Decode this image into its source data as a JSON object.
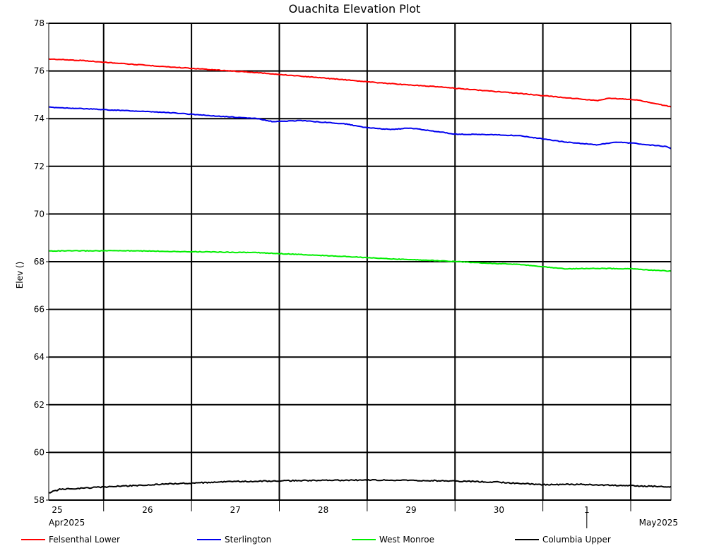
{
  "chart_data": {
    "type": "line",
    "title": "Ouachita Elevation Plot",
    "ylabel": "Elev ()",
    "xlabel": "",
    "ylim": [
      58,
      78
    ],
    "y_ticks": [
      58,
      60,
      62,
      64,
      66,
      68,
      70,
      72,
      74,
      76,
      78
    ],
    "xlim": [
      "2025-04-24T21:00",
      "2025-05-01T23:00"
    ],
    "x_tick_labels": [
      {
        "date": "2025-04-25",
        "label": "25"
      },
      {
        "date": "2025-04-26",
        "label": "26"
      },
      {
        "date": "2025-04-27",
        "label": "27"
      },
      {
        "date": "2025-04-28",
        "label": "28"
      },
      {
        "date": "2025-04-29",
        "label": "29"
      },
      {
        "date": "2025-04-30",
        "label": "30"
      },
      {
        "date": "2025-05-01",
        "label": "1"
      }
    ],
    "x_major_ticks": [
      "2025-04-25T12:00",
      "2025-04-26T12:00",
      "2025-04-27T12:00",
      "2025-04-28T12:00",
      "2025-04-29T12:00",
      "2025-04-30T12:00",
      "2025-05-01T12:00"
    ],
    "month_labels": [
      {
        "date": "2025-04-25",
        "label": "Apr2025"
      },
      {
        "date": "2025-05-01",
        "label": "May2025"
      }
    ],
    "month_boundary": "2025-05-01T00:00",
    "grid": true,
    "legend_position": "bottom",
    "series": [
      {
        "name": "Felsenthal Lower",
        "color": "#ff0000",
        "points": [
          [
            "2025-04-24T21:00",
            76.5
          ],
          [
            "2025-04-25T06:00",
            76.44
          ],
          [
            "2025-04-25T18:00",
            76.3
          ],
          [
            "2025-04-26T06:00",
            76.17
          ],
          [
            "2025-04-26T18:00",
            76.05
          ],
          [
            "2025-04-27T06:00",
            75.93
          ],
          [
            "2025-04-27T18:00",
            75.78
          ],
          [
            "2025-04-28T06:00",
            75.63
          ],
          [
            "2025-04-28T18:00",
            75.47
          ],
          [
            "2025-04-29T06:00",
            75.35
          ],
          [
            "2025-04-29T18:00",
            75.2
          ],
          [
            "2025-04-30T06:00",
            75.05
          ],
          [
            "2025-04-30T18:00",
            74.88
          ],
          [
            "2025-05-01T03:00",
            74.76
          ],
          [
            "2025-05-01T06:00",
            74.86
          ],
          [
            "2025-05-01T14:00",
            74.78
          ],
          [
            "2025-05-01T23:00",
            74.5
          ]
        ]
      },
      {
        "name": "Sterlington",
        "color": "#0000ee",
        "points": [
          [
            "2025-04-24T21:00",
            74.48
          ],
          [
            "2025-04-25T12:00",
            74.38
          ],
          [
            "2025-04-26T06:00",
            74.25
          ],
          [
            "2025-04-26T18:00",
            74.12
          ],
          [
            "2025-04-27T06:00",
            74.0
          ],
          [
            "2025-04-27T10:00",
            73.88
          ],
          [
            "2025-04-27T18:00",
            73.92
          ],
          [
            "2025-04-28T06:00",
            73.78
          ],
          [
            "2025-04-28T12:00",
            73.62
          ],
          [
            "2025-04-28T18:00",
            73.55
          ],
          [
            "2025-04-29T00:00",
            73.6
          ],
          [
            "2025-04-29T06:00",
            73.48
          ],
          [
            "2025-04-29T12:00",
            73.35
          ],
          [
            "2025-04-30T00:00",
            73.32
          ],
          [
            "2025-04-30T06:00",
            73.28
          ],
          [
            "2025-04-30T18:00",
            73.02
          ],
          [
            "2025-05-01T03:00",
            72.9
          ],
          [
            "2025-05-01T08:00",
            73.02
          ],
          [
            "2025-05-01T14:00",
            72.95
          ],
          [
            "2025-05-01T22:00",
            72.82
          ],
          [
            "2025-05-01T23:00",
            72.74
          ]
        ]
      },
      {
        "name": "West Monroe",
        "color": "#00ee00",
        "points": [
          [
            "2025-04-24T21:00",
            68.45
          ],
          [
            "2025-04-25T18:00",
            68.46
          ],
          [
            "2025-04-26T12:00",
            68.42
          ],
          [
            "2025-04-27T06:00",
            68.38
          ],
          [
            "2025-04-27T18:00",
            68.3
          ],
          [
            "2025-04-28T06:00",
            68.22
          ],
          [
            "2025-04-28T18:00",
            68.12
          ],
          [
            "2025-04-29T06:00",
            68.05
          ],
          [
            "2025-04-29T18:00",
            67.96
          ],
          [
            "2025-04-30T06:00",
            67.88
          ],
          [
            "2025-04-30T18:00",
            67.7
          ],
          [
            "2025-05-01T03:00",
            67.72
          ],
          [
            "2025-05-01T12:00",
            67.7
          ],
          [
            "2025-05-01T23:00",
            67.6
          ]
        ]
      },
      {
        "name": "Columbia Upper",
        "color": "#000000",
        "points": [
          [
            "2025-04-24T21:00",
            58.3
          ],
          [
            "2025-04-25T00:00",
            58.45
          ],
          [
            "2025-04-25T12:00",
            58.55
          ],
          [
            "2025-04-26T06:00",
            58.68
          ],
          [
            "2025-04-27T00:00",
            58.78
          ],
          [
            "2025-04-27T18:00",
            58.82
          ],
          [
            "2025-04-28T12:00",
            58.84
          ],
          [
            "2025-04-29T06:00",
            58.82
          ],
          [
            "2025-04-30T00:00",
            58.75
          ],
          [
            "2025-04-30T12:00",
            58.65
          ],
          [
            "2025-05-01T00:00",
            58.66
          ],
          [
            "2025-05-01T12:00",
            58.6
          ],
          [
            "2025-05-01T23:00",
            58.56
          ]
        ]
      }
    ]
  }
}
